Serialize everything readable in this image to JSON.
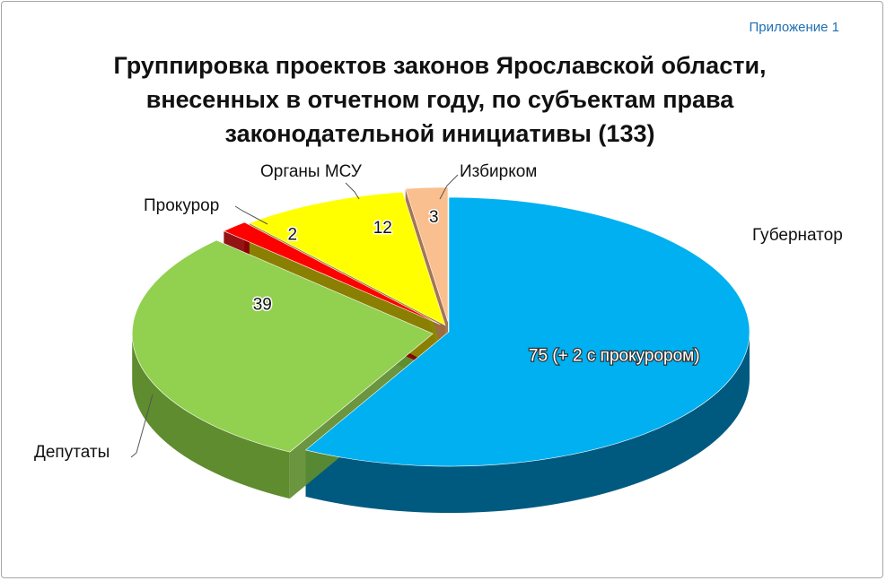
{
  "appendix_label": "Приложение 1",
  "title_lines": [
    "Группировка проектов законов Ярославской области,",
    "внесенных в отчетном году, по субъектам права",
    "законодательной инициативы (133)"
  ],
  "chart_data": {
    "type": "pie",
    "title": "Группировка проектов законов Ярославской области, внесенных в отчетном году, по субъектам права законодательной инициативы (133)",
    "total": 133,
    "series": [
      {
        "name": "Губернатор",
        "value": 77,
        "data_label": "75 (+  2 с прокурором)",
        "color": "#00b0f0",
        "dark": "#005a80"
      },
      {
        "name": "Депутаты",
        "value": 39,
        "data_label": "39",
        "color": "#92d050",
        "dark": "#5e8c2e"
      },
      {
        "name": "Прокурор",
        "value": 2,
        "data_label": "2",
        "color": "#ff0000",
        "dark": "#8a0000"
      },
      {
        "name": "Органы МСУ",
        "value": 12,
        "data_label": "12",
        "color": "#ffff00",
        "dark": "#8a8a00"
      },
      {
        "name": "Избирком",
        "value": 3,
        "data_label": "3",
        "color": "#fabf8f",
        "dark": "#9c6a45"
      }
    ]
  }
}
